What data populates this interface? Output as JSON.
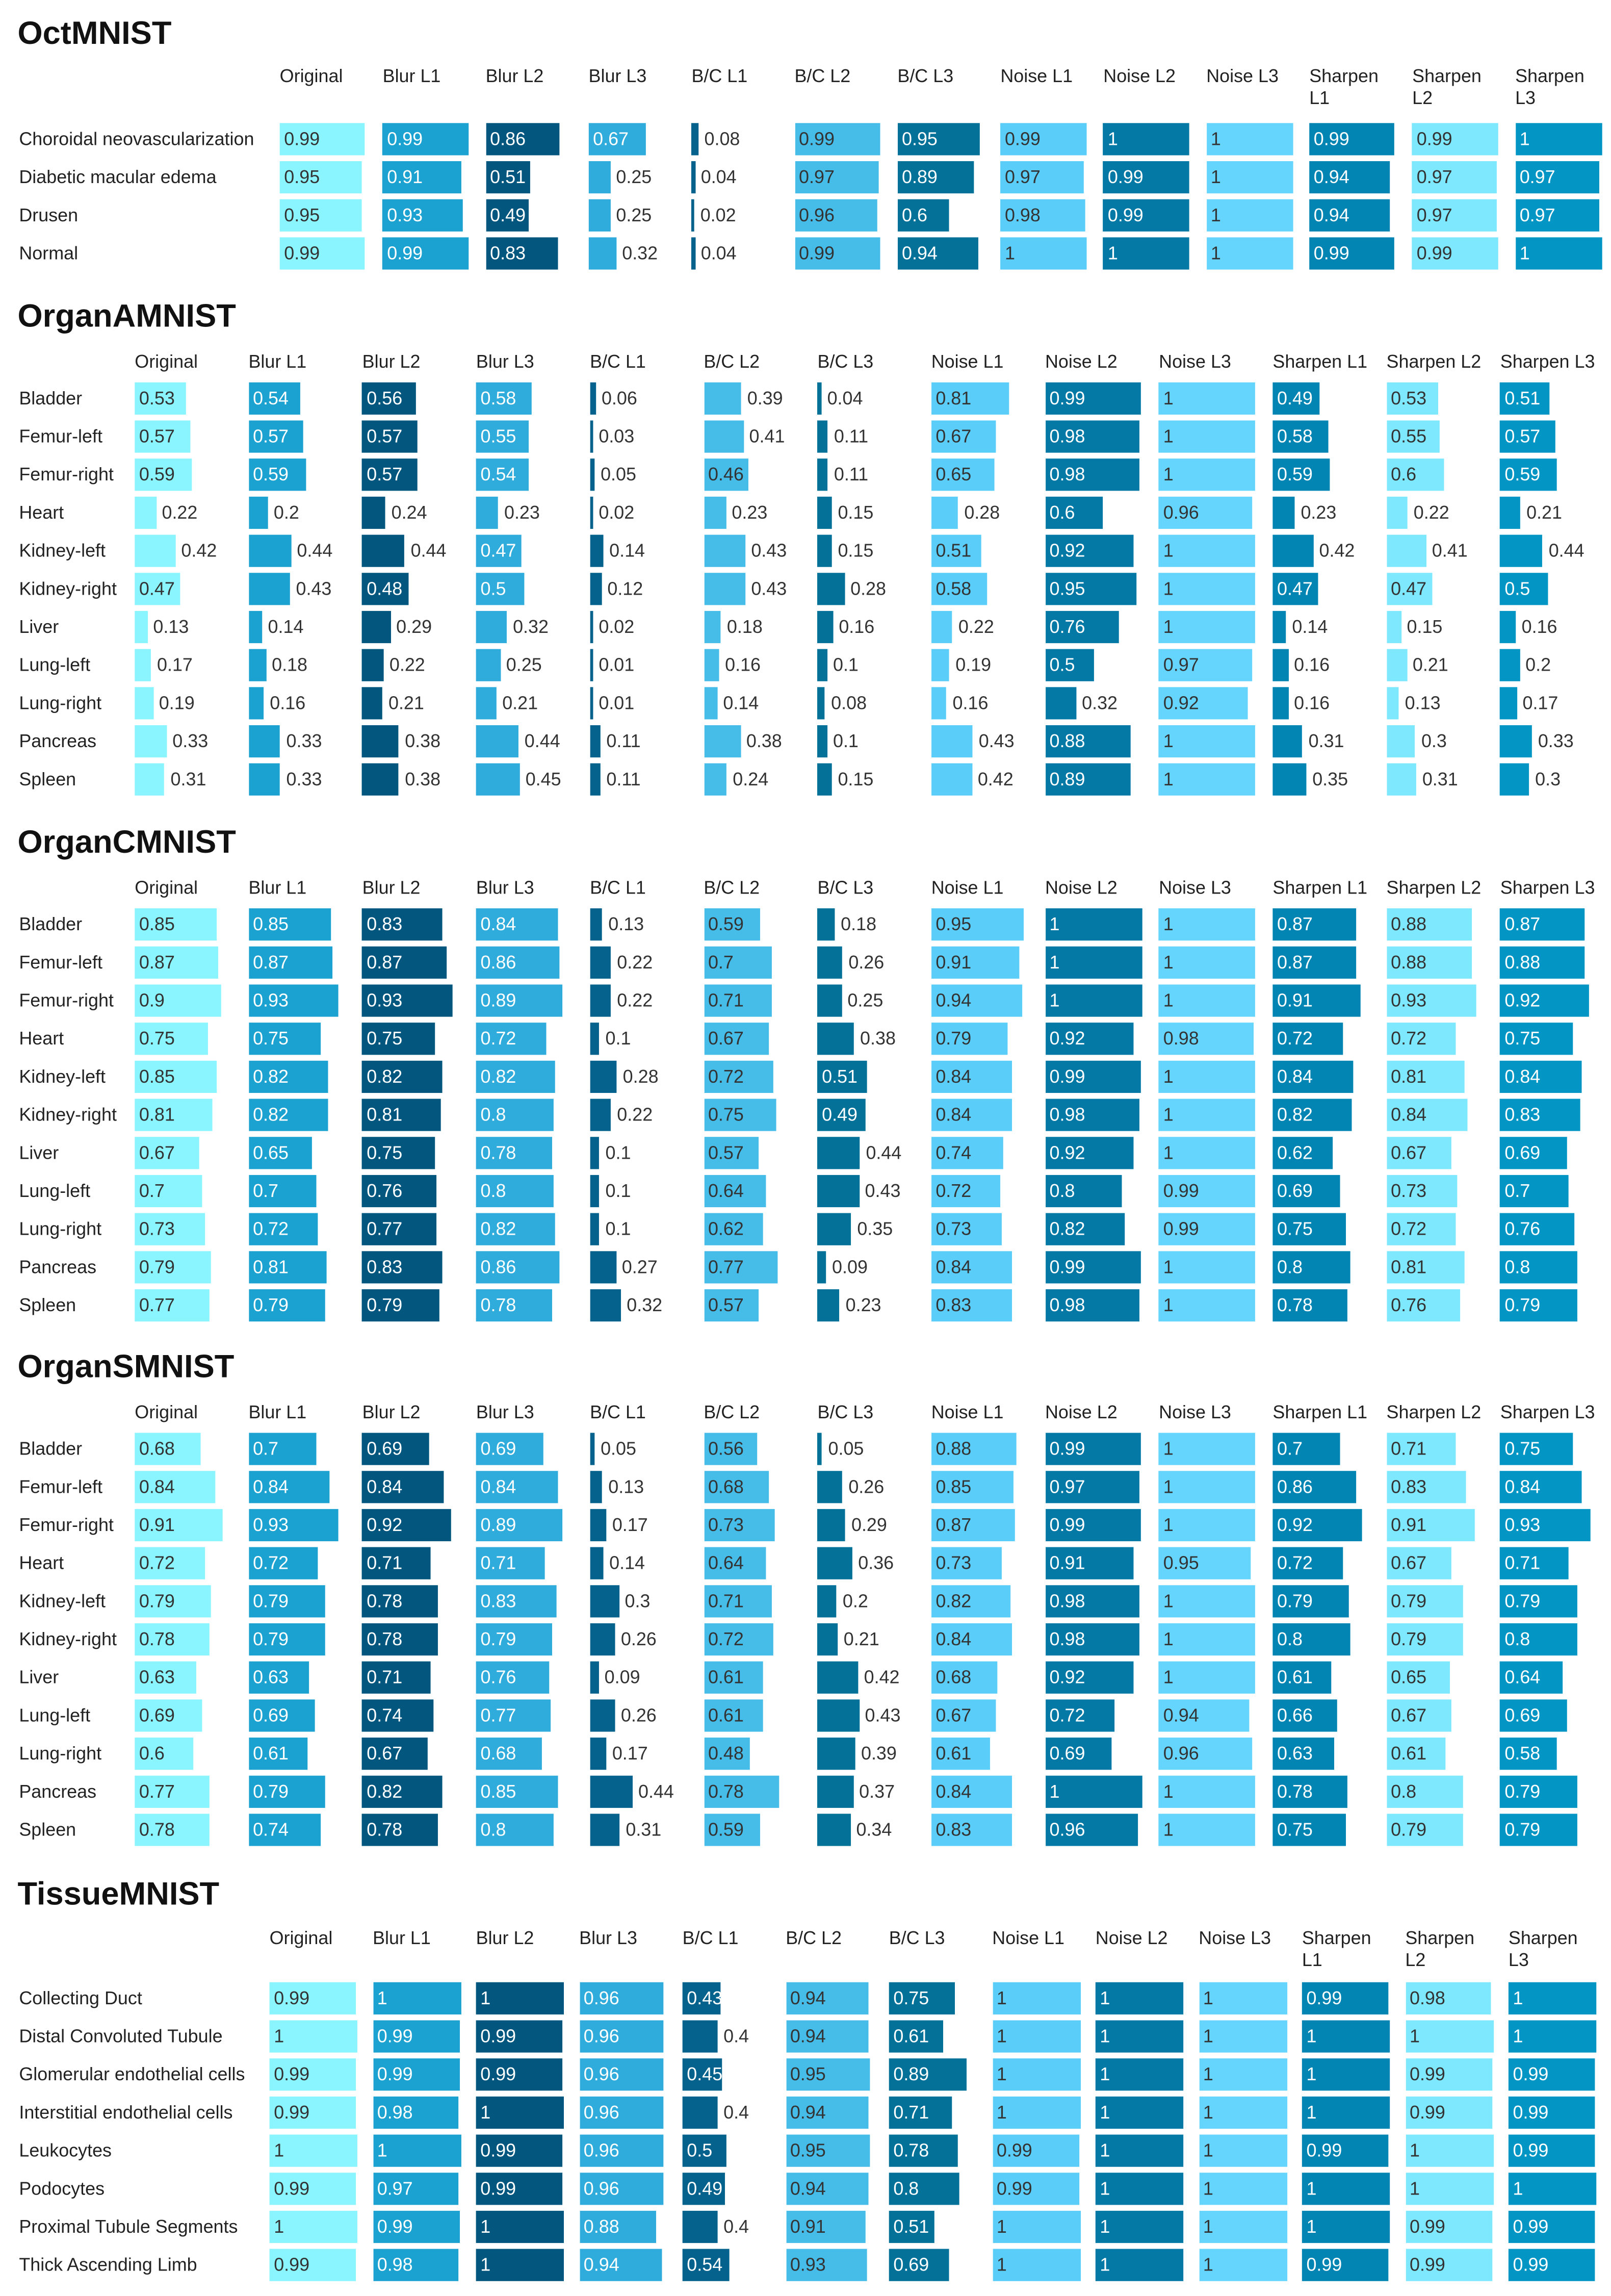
{
  "columns": [
    "Original",
    "Blur L1",
    "Blur L2",
    "Blur L3",
    "B/C L1",
    "B/C L2",
    "B/C L3",
    "Noise L1",
    "Noise L2",
    "Noise L3",
    "Sharpen L1",
    "Sharpen L2",
    "Sharpen L3"
  ],
  "column_colors": [
    "#8af4ff",
    "#1ba2d0",
    "#03577f",
    "#30acdc",
    "#05628c",
    "#46bce8",
    "#047199",
    "#5acdf8",
    "#0479a6",
    "#66d5fd",
    "#0285b3",
    "#7ee8ff",
    "#0395c4"
  ],
  "chart_data": [
    {
      "type": "table",
      "title": "OctMNIST",
      "rows": [
        {
          "label": "Choroidal neovascularization",
          "values": [
            0.99,
            0.99,
            0.86,
            0.67,
            0.08,
            0.99,
            0.95,
            0.99,
            1,
            1,
            0.99,
            0.99,
            1
          ]
        },
        {
          "label": "Diabetic macular edema",
          "values": [
            0.95,
            0.91,
            0.51,
            0.25,
            0.04,
            0.97,
            0.89,
            0.97,
            0.99,
            1,
            0.94,
            0.97,
            0.97
          ]
        },
        {
          "label": "Drusen",
          "values": [
            0.95,
            0.93,
            0.49,
            0.25,
            0.02,
            0.96,
            0.6,
            0.98,
            0.99,
            1,
            0.94,
            0.97,
            0.97
          ]
        },
        {
          "label": "Normal",
          "values": [
            0.99,
            0.99,
            0.83,
            0.32,
            0.04,
            0.99,
            0.94,
            1,
            1,
            1,
            0.99,
            0.99,
            1
          ]
        }
      ]
    },
    {
      "type": "table",
      "title": "OrganAMNIST",
      "rows": [
        {
          "label": "Bladder",
          "values": [
            0.53,
            0.54,
            0.56,
            0.58,
            0.06,
            0.39,
            0.04,
            0.81,
            0.99,
            1,
            0.49,
            0.53,
            0.51
          ]
        },
        {
          "label": "Femur-left",
          "values": [
            0.57,
            0.57,
            0.57,
            0.55,
            0.03,
            0.41,
            0.11,
            0.67,
            0.98,
            1,
            0.58,
            0.55,
            0.57
          ]
        },
        {
          "label": "Femur-right",
          "values": [
            0.59,
            0.59,
            0.57,
            0.54,
            0.05,
            0.46,
            0.11,
            0.65,
            0.98,
            1,
            0.59,
            0.6,
            0.59
          ]
        },
        {
          "label": "Heart",
          "values": [
            0.22,
            0.2,
            0.24,
            0.23,
            0.02,
            0.23,
            0.15,
            0.28,
            0.6,
            0.96,
            0.23,
            0.22,
            0.21
          ]
        },
        {
          "label": "Kidney-left",
          "values": [
            0.42,
            0.44,
            0.44,
            0.47,
            0.14,
            0.43,
            0.15,
            0.51,
            0.92,
            1,
            0.42,
            0.41,
            0.44
          ]
        },
        {
          "label": "Kidney-right",
          "values": [
            0.47,
            0.43,
            0.48,
            0.5,
            0.12,
            0.43,
            0.28,
            0.58,
            0.95,
            1,
            0.47,
            0.47,
            0.5
          ]
        },
        {
          "label": "Liver",
          "values": [
            0.13,
            0.14,
            0.29,
            0.32,
            0.02,
            0.18,
            0.16,
            0.22,
            0.76,
            1,
            0.14,
            0.15,
            0.16
          ]
        },
        {
          "label": "Lung-left",
          "values": [
            0.17,
            0.18,
            0.22,
            0.25,
            0.01,
            0.16,
            0.1,
            0.19,
            0.5,
            0.97,
            0.16,
            0.21,
            0.2
          ]
        },
        {
          "label": "Lung-right",
          "values": [
            0.19,
            0.16,
            0.21,
            0.21,
            0.01,
            0.14,
            0.08,
            0.16,
            0.32,
            0.92,
            0.16,
            0.13,
            0.17
          ]
        },
        {
          "label": "Pancreas",
          "values": [
            0.33,
            0.33,
            0.38,
            0.44,
            0.11,
            0.38,
            0.1,
            0.43,
            0.88,
            1,
            0.31,
            0.3,
            0.33
          ]
        },
        {
          "label": "Spleen",
          "values": [
            0.31,
            0.33,
            0.38,
            0.45,
            0.11,
            0.24,
            0.15,
            0.42,
            0.89,
            1,
            0.35,
            0.31,
            0.3
          ]
        }
      ]
    },
    {
      "type": "table",
      "title": "OrganCMNIST",
      "rows": [
        {
          "label": "Bladder",
          "values": [
            0.85,
            0.85,
            0.83,
            0.84,
            0.13,
            0.59,
            0.18,
            0.95,
            1,
            1,
            0.87,
            0.88,
            0.87
          ]
        },
        {
          "label": "Femur-left",
          "values": [
            0.87,
            0.87,
            0.87,
            0.86,
            0.22,
            0.7,
            0.26,
            0.91,
            1,
            1,
            0.87,
            0.88,
            0.88
          ]
        },
        {
          "label": "Femur-right",
          "values": [
            0.9,
            0.93,
            0.93,
            0.89,
            0.22,
            0.71,
            0.25,
            0.94,
            1,
            1,
            0.91,
            0.93,
            0.92
          ]
        },
        {
          "label": "Heart",
          "values": [
            0.75,
            0.75,
            0.75,
            0.72,
            0.1,
            0.67,
            0.38,
            0.79,
            0.92,
            0.98,
            0.72,
            0.72,
            0.75
          ]
        },
        {
          "label": "Kidney-left",
          "values": [
            0.85,
            0.82,
            0.82,
            0.82,
            0.28,
            0.72,
            0.51,
            0.84,
            0.99,
            1,
            0.84,
            0.81,
            0.84
          ]
        },
        {
          "label": "Kidney-right",
          "values": [
            0.81,
            0.82,
            0.81,
            0.8,
            0.22,
            0.75,
            0.49,
            0.84,
            0.98,
            1,
            0.82,
            0.84,
            0.83
          ]
        },
        {
          "label": "Liver",
          "values": [
            0.67,
            0.65,
            0.75,
            0.78,
            0.1,
            0.57,
            0.44,
            0.74,
            0.92,
            1,
            0.62,
            0.67,
            0.69
          ]
        },
        {
          "label": "Lung-left",
          "values": [
            0.7,
            0.7,
            0.76,
            0.8,
            0.1,
            0.64,
            0.43,
            0.72,
            0.8,
            0.99,
            0.69,
            0.73,
            0.7
          ]
        },
        {
          "label": "Lung-right",
          "values": [
            0.73,
            0.72,
            0.77,
            0.82,
            0.1,
            0.62,
            0.35,
            0.73,
            0.82,
            0.99,
            0.75,
            0.72,
            0.76
          ]
        },
        {
          "label": "Pancreas",
          "values": [
            0.79,
            0.81,
            0.83,
            0.86,
            0.27,
            0.77,
            0.09,
            0.84,
            0.99,
            1,
            0.8,
            0.81,
            0.8
          ]
        },
        {
          "label": "Spleen",
          "values": [
            0.77,
            0.79,
            0.79,
            0.78,
            0.32,
            0.57,
            0.23,
            0.83,
            0.98,
            1,
            0.78,
            0.76,
            0.79
          ]
        }
      ]
    },
    {
      "type": "table",
      "title": "OrganSMNIST",
      "rows": [
        {
          "label": "Bladder",
          "values": [
            0.68,
            0.7,
            0.69,
            0.69,
            0.05,
            0.56,
            0.05,
            0.88,
            0.99,
            1,
            0.7,
            0.71,
            0.75
          ]
        },
        {
          "label": "Femur-left",
          "values": [
            0.84,
            0.84,
            0.84,
            0.84,
            0.13,
            0.68,
            0.26,
            0.85,
            0.97,
            1,
            0.86,
            0.83,
            0.84
          ]
        },
        {
          "label": "Femur-right",
          "values": [
            0.91,
            0.93,
            0.92,
            0.89,
            0.17,
            0.73,
            0.29,
            0.87,
            0.99,
            1,
            0.92,
            0.91,
            0.93
          ]
        },
        {
          "label": "Heart",
          "values": [
            0.72,
            0.72,
            0.71,
            0.71,
            0.14,
            0.64,
            0.36,
            0.73,
            0.91,
            0.95,
            0.72,
            0.67,
            0.71
          ]
        },
        {
          "label": "Kidney-left",
          "values": [
            0.79,
            0.79,
            0.78,
            0.83,
            0.3,
            0.71,
            0.2,
            0.82,
            0.98,
            1,
            0.79,
            0.79,
            0.79
          ]
        },
        {
          "label": "Kidney-right",
          "values": [
            0.78,
            0.79,
            0.78,
            0.79,
            0.26,
            0.72,
            0.21,
            0.84,
            0.98,
            1,
            0.8,
            0.79,
            0.8
          ]
        },
        {
          "label": "Liver",
          "values": [
            0.63,
            0.63,
            0.71,
            0.76,
            0.09,
            0.61,
            0.42,
            0.68,
            0.92,
            1,
            0.61,
            0.65,
            0.64
          ]
        },
        {
          "label": "Lung-left",
          "values": [
            0.69,
            0.69,
            0.74,
            0.77,
            0.26,
            0.61,
            0.43,
            0.67,
            0.72,
            0.94,
            0.66,
            0.67,
            0.69
          ]
        },
        {
          "label": "Lung-right",
          "values": [
            0.6,
            0.61,
            0.67,
            0.68,
            0.17,
            0.48,
            0.39,
            0.61,
            0.69,
            0.96,
            0.63,
            0.61,
            0.58
          ]
        },
        {
          "label": "Pancreas",
          "values": [
            0.77,
            0.79,
            0.82,
            0.85,
            0.44,
            0.78,
            0.37,
            0.84,
            1,
            1,
            0.78,
            0.8,
            0.79
          ]
        },
        {
          "label": "Spleen",
          "values": [
            0.78,
            0.74,
            0.78,
            0.8,
            0.31,
            0.59,
            0.34,
            0.83,
            0.96,
            1,
            0.75,
            0.79,
            0.79
          ]
        }
      ]
    },
    {
      "type": "table",
      "title": "TissueMNIST",
      "rows": [
        {
          "label": "Collecting Duct",
          "values": [
            0.99,
            1,
            1,
            0.96,
            0.43,
            0.94,
            0.75,
            1,
            1,
            1,
            0.99,
            0.98,
            1
          ]
        },
        {
          "label": "Distal Convoluted Tubule",
          "values": [
            1,
            0.99,
            0.99,
            0.96,
            0.4,
            0.94,
            0.61,
            1,
            1,
            1,
            1,
            1,
            1
          ]
        },
        {
          "label": "Glomerular endothelial cells",
          "values": [
            0.99,
            0.99,
            0.99,
            0.96,
            0.45,
            0.95,
            0.89,
            1,
            1,
            1,
            1,
            0.99,
            0.99
          ]
        },
        {
          "label": "Interstitial endothelial cells",
          "values": [
            0.99,
            0.98,
            1,
            0.96,
            0.4,
            0.94,
            0.71,
            1,
            1,
            1,
            1,
            0.99,
            0.99
          ]
        },
        {
          "label": "Leukocytes",
          "values": [
            1,
            1,
            0.99,
            0.96,
            0.5,
            0.95,
            0.78,
            0.99,
            1,
            1,
            0.99,
            1,
            0.99
          ]
        },
        {
          "label": "Podocytes",
          "values": [
            0.99,
            0.97,
            0.99,
            0.96,
            0.49,
            0.94,
            0.8,
            0.99,
            1,
            1,
            1,
            1,
            1
          ]
        },
        {
          "label": "Proximal Tubule Segments",
          "values": [
            1,
            0.99,
            1,
            0.88,
            0.4,
            0.91,
            0.51,
            1,
            1,
            1,
            1,
            0.99,
            0.99
          ]
        },
        {
          "label": "Thick Ascending Limb",
          "values": [
            0.99,
            0.98,
            1,
            0.94,
            0.54,
            0.93,
            0.69,
            1,
            1,
            1,
            0.99,
            0.99,
            0.99
          ]
        }
      ]
    }
  ]
}
